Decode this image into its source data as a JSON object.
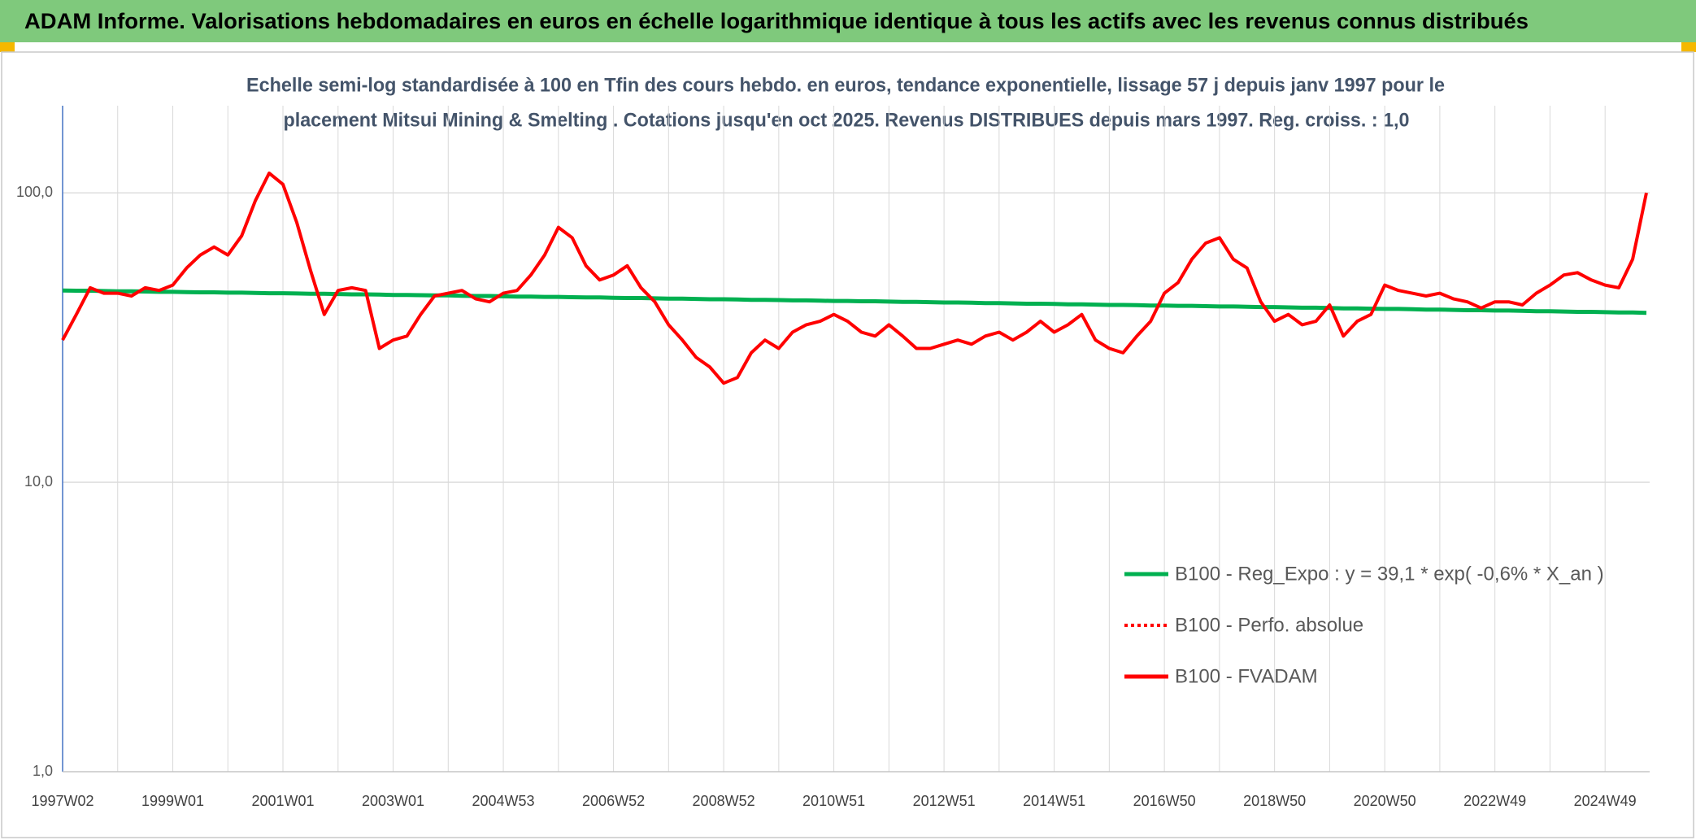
{
  "chart_data": {
    "type": "line",
    "title": "ADAM Informe. Valorisations hebdomadaires en euros en échelle logarithmique identique à tous les actifs avec les revenus connus distribués",
    "subtitle": [
      "Echelle semi-log standardisée à 100 en Tfin des cours hebdo. en euros, tendance exponentielle, lissage 57 j depuis janv 1997 pour le",
      "placement Mitsui Mining & Smelting . Cotations jusqu'en oct 2025. Revenus DISTRIBUES depuis mars 1997. Reg. croiss. : 1,0"
    ],
    "categories": [
      "1997W02",
      null,
      null,
      null,
      null,
      null,
      null,
      null,
      "1999W01",
      null,
      null,
      null,
      null,
      null,
      null,
      null,
      "2001W01",
      null,
      null,
      null,
      null,
      null,
      null,
      null,
      "2003W01",
      null,
      null,
      null,
      null,
      null,
      null,
      null,
      "2004W53",
      null,
      null,
      null,
      null,
      null,
      null,
      null,
      "2006W52",
      null,
      null,
      null,
      null,
      null,
      null,
      null,
      "2008W52",
      null,
      null,
      null,
      null,
      null,
      null,
      null,
      "2010W51",
      null,
      null,
      null,
      null,
      null,
      null,
      null,
      "2012W51",
      null,
      null,
      null,
      null,
      null,
      null,
      null,
      "2014W51",
      null,
      null,
      null,
      null,
      null,
      null,
      null,
      "2016W50",
      null,
      null,
      null,
      null,
      null,
      null,
      null,
      "2018W50",
      null,
      null,
      null,
      null,
      null,
      null,
      null,
      "2020W50",
      null,
      null,
      null,
      null,
      null,
      null,
      null,
      "2022W49",
      null,
      null,
      null,
      null,
      null,
      null,
      null,
      "2024W49",
      null,
      null,
      null
    ],
    "log_y": true,
    "ylim": [
      1,
      200
    ],
    "yticks": [
      {
        "value": 1,
        "label": "1,0"
      },
      {
        "value": 10,
        "label": "10,0"
      },
      {
        "value": 100,
        "label": "100,0"
      }
    ],
    "grid": true,
    "legend": "right",
    "series": [
      {
        "name": "B100 - Reg_Expo : y = 39,1 * exp( -0,6% *  X_an )",
        "color": "#00b050",
        "dash": "solid",
        "values": [
          46.0,
          45.9,
          45.9,
          45.8,
          45.7,
          45.7,
          45.6,
          45.5,
          45.5,
          45.4,
          45.3,
          45.3,
          45.2,
          45.2,
          45.1,
          45.0,
          45.0,
          44.9,
          44.8,
          44.8,
          44.7,
          44.6,
          44.6,
          44.5,
          44.4,
          44.4,
          44.3,
          44.2,
          44.2,
          44.1,
          44.0,
          44.0,
          43.9,
          43.8,
          43.8,
          43.7,
          43.7,
          43.6,
          43.5,
          43.5,
          43.4,
          43.3,
          43.3,
          43.2,
          43.1,
          43.1,
          43.0,
          42.9,
          42.9,
          42.8,
          42.7,
          42.7,
          42.6,
          42.5,
          42.5,
          42.4,
          42.3,
          42.3,
          42.2,
          42.2,
          42.1,
          42.0,
          42.0,
          41.9,
          41.8,
          41.8,
          41.7,
          41.6,
          41.6,
          41.5,
          41.4,
          41.4,
          41.3,
          41.2,
          41.2,
          41.1,
          41.0,
          41.0,
          40.9,
          40.8,
          40.8,
          40.7,
          40.7,
          40.6,
          40.5,
          40.5,
          40.4,
          40.3,
          40.3,
          40.2,
          40.1,
          40.1,
          40.0,
          39.9,
          39.9,
          39.8,
          39.7,
          39.7,
          39.6,
          39.5,
          39.5,
          39.4,
          39.3,
          39.3,
          39.2,
          39.2,
          39.1,
          39.0,
          39.0,
          38.9,
          38.8,
          38.8,
          38.7,
          38.6,
          38.6,
          38.5
        ]
      },
      {
        "name": "B100 - Perfo. absolue",
        "color": "#ff0000",
        "dash": "dotted",
        "values": [
          null,
          null,
          null,
          null,
          null,
          null,
          null,
          null,
          null,
          null,
          null,
          null,
          null,
          null,
          null,
          null,
          null,
          null,
          null,
          null,
          null,
          null,
          null,
          null,
          null,
          null,
          null,
          null,
          null,
          null,
          null,
          null,
          null,
          null,
          null,
          null,
          null,
          null,
          null,
          null,
          null,
          null,
          null,
          null,
          null,
          null,
          null,
          null,
          null,
          null,
          null,
          null,
          null,
          null,
          null,
          null,
          null,
          null,
          null,
          null,
          null,
          null,
          null,
          null,
          null,
          null,
          null,
          null,
          null,
          null,
          null,
          null,
          null,
          null,
          null,
          null,
          null,
          null,
          null,
          null,
          null,
          null,
          null,
          null,
          null,
          null,
          null,
          null,
          null,
          null,
          null,
          null,
          null,
          null,
          null,
          null,
          null,
          null,
          null,
          null,
          null,
          null,
          null,
          null,
          null,
          null,
          null,
          null,
          null,
          null,
          null,
          null,
          null,
          null,
          null,
          null
        ]
      },
      {
        "name": "B100 - FVADAM",
        "color": "#ff0000",
        "dash": "solid",
        "values": [
          31,
          38,
          47,
          45,
          45,
          44,
          47,
          46,
          48,
          55,
          61,
          65,
          61,
          71,
          94,
          117,
          107,
          79,
          54,
          38,
          46,
          47,
          46,
          29,
          31,
          32,
          38,
          44,
          45,
          46,
          43,
          42,
          45,
          46,
          52,
          61,
          76,
          70,
          56,
          50,
          52,
          56,
          47,
          42,
          35,
          31,
          27,
          25,
          22,
          23,
          28,
          31,
          29,
          33,
          35,
          36,
          38,
          36,
          33,
          32,
          35,
          32,
          29,
          29,
          30,
          31,
          30,
          32,
          33,
          31,
          33,
          36,
          33,
          35,
          38,
          31,
          29,
          28,
          32,
          36,
          45,
          49,
          59,
          67,
          70,
          59,
          55,
          42,
          36,
          38,
          35,
          36,
          41,
          32,
          36,
          38,
          48,
          46,
          45,
          44,
          45,
          43,
          42,
          40,
          42,
          42,
          41,
          45,
          48,
          52,
          53,
          50,
          48,
          47,
          59,
          100
        ]
      }
    ]
  }
}
